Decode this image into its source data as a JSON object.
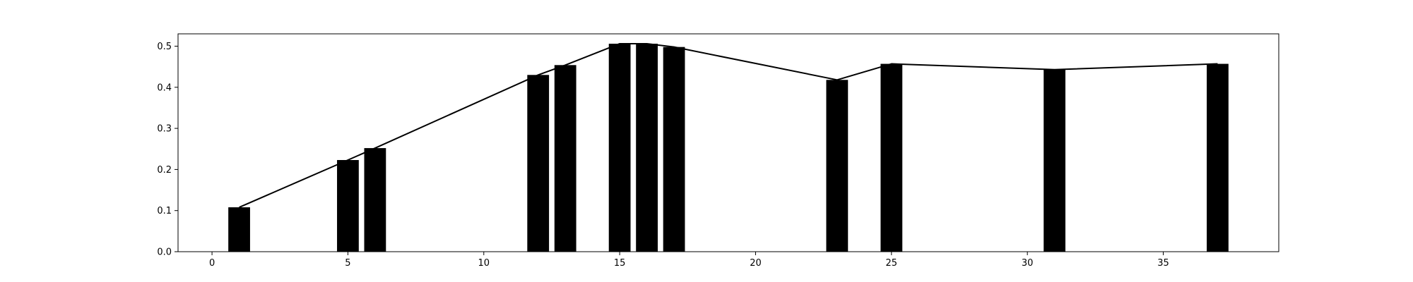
{
  "chart_data": {
    "type": "bar",
    "title": "",
    "xlabel": "",
    "ylabel": "",
    "xlim": [
      -1.25,
      39.25
    ],
    "ylim": [
      0,
      0.53
    ],
    "grid": false,
    "legend": "none",
    "bar_color": "#000000",
    "line_color": "#000000",
    "bar_width": 0.8,
    "x_ticks": [
      0,
      5,
      10,
      15,
      20,
      25,
      30,
      35
    ],
    "y_ticks": [
      0.0,
      0.1,
      0.2,
      0.3,
      0.4,
      0.5
    ],
    "x_tick_labels": [
      "0",
      "5",
      "10",
      "15",
      "20",
      "25",
      "30",
      "35"
    ],
    "y_tick_labels": [
      "0.0",
      "0.1",
      "0.2",
      "0.3",
      "0.4",
      "0.5"
    ],
    "x": [
      1,
      5,
      6,
      12,
      13,
      15,
      16,
      17,
      23,
      25,
      31,
      37
    ],
    "values": [
      0.108,
      0.223,
      0.252,
      0.43,
      0.454,
      0.506,
      0.506,
      0.498,
      0.418,
      0.457,
      0.443,
      0.457
    ],
    "line": {
      "x": [
        1,
        5,
        6,
        12,
        13,
        15,
        16,
        17,
        23,
        25,
        31,
        37
      ],
      "y": [
        0.108,
        0.223,
        0.252,
        0.43,
        0.454,
        0.506,
        0.506,
        0.498,
        0.418,
        0.457,
        0.443,
        0.457
      ]
    }
  }
}
